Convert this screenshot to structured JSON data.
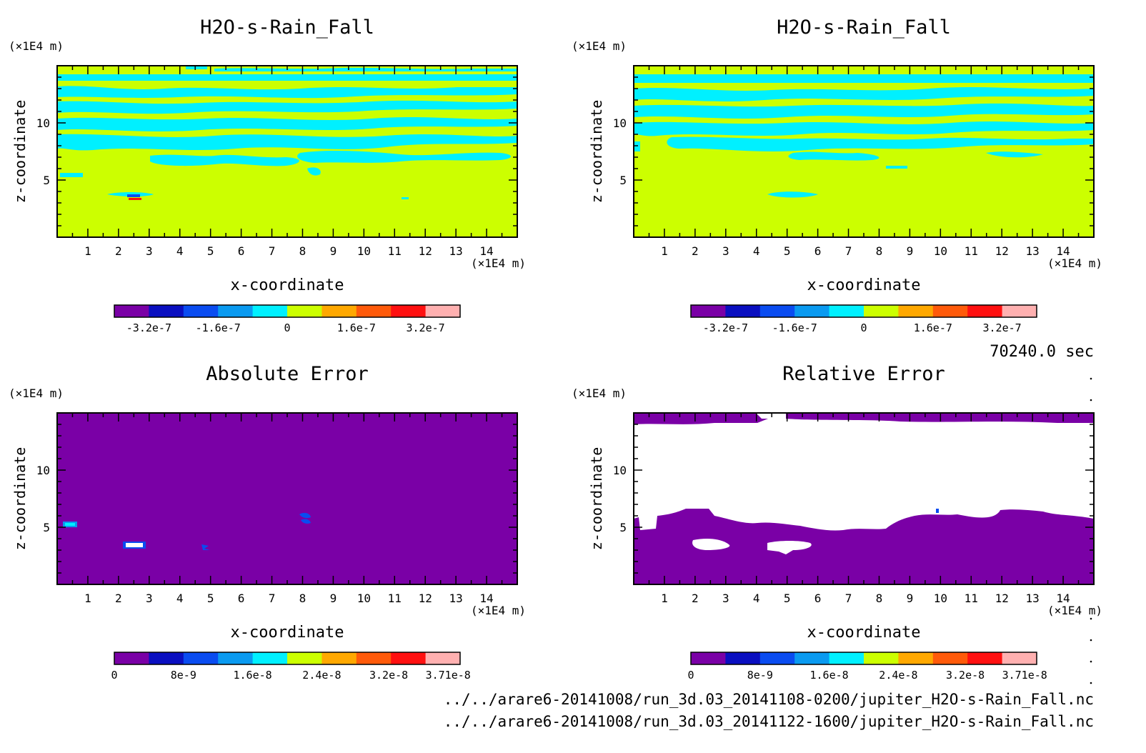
{
  "time_label": "70240.0 sec",
  "file_paths": [
    "../../arare6-20141008/run_3d.03_20141108-0200/jupiter_H2O-s-Rain_Fall.nc",
    "../../arare6-20141008/run_3d.03_20141122-1600/jupiter_H2O-s-Rain_Fall.nc"
  ],
  "chart_data": [
    {
      "type": "heatmap",
      "title": "H2O-s-Rain_Fall",
      "xlabel": "x-coordinate",
      "ylabel": "z-coordinate",
      "x_unit": "(×1E4 m)",
      "y_unit": "(×1E4 m)",
      "xlim": [
        0,
        15
      ],
      "ylim": [
        0,
        15
      ],
      "x_ticks": [
        "1",
        "2",
        "3",
        "4",
        "5",
        "6",
        "7",
        "8",
        "9",
        "10",
        "11",
        "12",
        "13",
        "14"
      ],
      "y_ticks": [
        "5",
        "10"
      ],
      "background_level": "0 to 8e-8",
      "features": "alternating cyan (-8e-8 to 0) bands between z≈5 and z≈14.5; small red/blue spot near x≈2.6, z≈3.5",
      "colorbar": {
        "colors": [
          "#7a00a6",
          "#0a0fc0",
          "#0a4cf0",
          "#0a9af0",
          "#00f0ff",
          "#ccff00",
          "#ffa800",
          "#ff5a0a",
          "#ff1010",
          "#ffb0b0"
        ],
        "tick_labels": [
          "-3.2e-7",
          "-1.6e-7",
          "0",
          "1.6e-7",
          "3.2e-7"
        ]
      }
    },
    {
      "type": "heatmap",
      "title": "H2O-s-Rain_Fall",
      "xlabel": "x-coordinate",
      "ylabel": "z-coordinate",
      "x_unit": "(×1E4 m)",
      "y_unit": "(×1E4 m)",
      "xlim": [
        0,
        15
      ],
      "ylim": [
        0,
        15
      ],
      "x_ticks": [
        "1",
        "2",
        "3",
        "4",
        "5",
        "6",
        "7",
        "8",
        "9",
        "10",
        "11",
        "12",
        "13",
        "14"
      ],
      "y_ticks": [
        "5",
        "10"
      ],
      "background_level": "0 to 8e-8",
      "features": "alternating cyan (-8e-8 to 0) bands between z≈6 and z≈14.5; small cyan patch near x≈5.5, z≈3.5",
      "colorbar": {
        "colors": [
          "#7a00a6",
          "#0a0fc0",
          "#0a4cf0",
          "#0a9af0",
          "#00f0ff",
          "#ccff00",
          "#ffa800",
          "#ff5a0a",
          "#ff1010",
          "#ffb0b0"
        ],
        "tick_labels": [
          "-3.2e-7",
          "-1.6e-7",
          "0",
          "1.6e-7",
          "3.2e-7"
        ]
      }
    },
    {
      "type": "heatmap",
      "title": "Absolute Error",
      "xlabel": "x-coordinate",
      "ylabel": "z-coordinate",
      "x_unit": "(×1E4 m)",
      "y_unit": "(×1E4 m)",
      "xlim": [
        0,
        15
      ],
      "ylim": [
        0,
        15
      ],
      "x_ticks": [
        "1",
        "2",
        "3",
        "4",
        "5",
        "6",
        "7",
        "8",
        "9",
        "10",
        "11",
        "12",
        "13",
        "14"
      ],
      "y_ticks": [
        "5",
        "10"
      ],
      "background_level": "0 to 3.71e-9",
      "features": "small spots near (0.4,5.2), (2.6,3.5), (4.9,3.3), (8.1,5.5)",
      "colorbar": {
        "colors": [
          "#7a00a6",
          "#0a0fc0",
          "#0a4cf0",
          "#0a9af0",
          "#00f0ff",
          "#ccff00",
          "#ffa800",
          "#ff5a0a",
          "#ff1010",
          "#ffb0b0"
        ],
        "tick_labels": [
          "0",
          "8e-9",
          "1.6e-8",
          "2.4e-8",
          "3.2e-8",
          "3.71e-8"
        ]
      }
    },
    {
      "type": "heatmap",
      "title": "Relative Error",
      "xlabel": "x-coordinate",
      "ylabel": "z-coordinate",
      "x_unit": "(×1E4 m)",
      "y_unit": "(×1E4 m)",
      "xlim": [
        0,
        15
      ],
      "ylim": [
        0,
        15
      ],
      "x_ticks": [
        "1",
        "2",
        "3",
        "4",
        "5",
        "6",
        "7",
        "8",
        "9",
        "10",
        "11",
        "12",
        "13",
        "14"
      ],
      "y_ticks": [
        "5",
        "10"
      ],
      "background_level": "0 to 3.71e-9",
      "features": "large undefined (white) region between z≈5 and z≈14; white patches near (3,3.5) and (5.5,3.2)",
      "colorbar": {
        "colors": [
          "#7a00a6",
          "#0a0fc0",
          "#0a4cf0",
          "#0a9af0",
          "#00f0ff",
          "#ccff00",
          "#ffa800",
          "#ff5a0a",
          "#ff1010",
          "#ffb0b0"
        ],
        "tick_labels": [
          "0",
          "8e-9",
          "1.6e-8",
          "2.4e-8",
          "3.2e-8",
          "3.71e-8"
        ]
      }
    }
  ]
}
